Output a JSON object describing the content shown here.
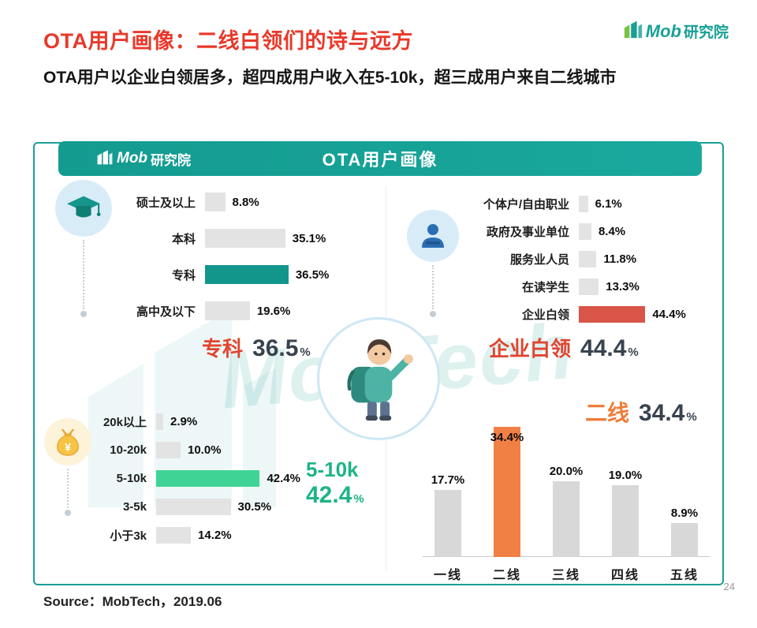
{
  "page": {
    "title": "OTA用户画像：二线白领们的诗与远方",
    "subtitle": "OTA用户以企业白领居多，超四成用户收入在5-10k，超三成用户来自二线城市",
    "source": "Source：MobTech，2019.06",
    "page_number": "24",
    "watermark": "MobTech"
  },
  "brand": {
    "mob": "Mob",
    "suffix": "研究院"
  },
  "panel": {
    "header_title": "OTA用户画像"
  },
  "colors": {
    "accent_teal": "#18a096",
    "title_red": "#e8392b",
    "bar_gray": "#e3e3e3",
    "city_bar_gray": "#d8d8d8",
    "bar_teal": "#12968c",
    "bar_red": "#d85548",
    "bar_green": "#3fd495",
    "bar_orange": "#f08044"
  },
  "chart_data": [
    {
      "id": "education",
      "type": "bar",
      "orientation": "horizontal",
      "categories": [
        "硕士及以上",
        "本科",
        "专科",
        "高中及以下"
      ],
      "values": [
        8.8,
        35.1,
        36.5,
        19.6
      ],
      "labels": [
        "8.8%",
        "35.1%",
        "36.5%",
        "19.6%"
      ],
      "highlight_index": 2,
      "highlight_color": "#12968c",
      "callout": {
        "label": "专科",
        "value": "36.5",
        "unit": "%"
      }
    },
    {
      "id": "occupation",
      "type": "bar",
      "orientation": "horizontal",
      "categories": [
        "个体户/自由职业",
        "政府及事业单位",
        "服务业人员",
        "在读学生",
        "企业白领"
      ],
      "values": [
        6.1,
        8.4,
        11.8,
        13.3,
        44.4
      ],
      "labels": [
        "6.1%",
        "8.4%",
        "11.8%",
        "13.3%",
        "44.4%"
      ],
      "highlight_index": 4,
      "highlight_color": "#d85548",
      "callout": {
        "label": "企业白领",
        "value": "44.4",
        "unit": "%"
      }
    },
    {
      "id": "income",
      "type": "bar",
      "orientation": "horizontal",
      "categories": [
        "20k以上",
        "10-20k",
        "5-10k",
        "3-5k",
        "小于3k"
      ],
      "values": [
        2.9,
        10.0,
        42.4,
        30.5,
        14.2
      ],
      "labels": [
        "2.9%",
        "10.0%",
        "42.4%",
        "30.5%",
        "14.2%"
      ],
      "highlight_index": 2,
      "highlight_color": "#3fd495",
      "callout": {
        "label": "5-10k",
        "value": "42.4",
        "unit": "%"
      }
    },
    {
      "id": "city_tier",
      "type": "bar",
      "orientation": "vertical",
      "categories": [
        "一线",
        "二线",
        "三线",
        "四线",
        "五线"
      ],
      "values": [
        17.7,
        34.4,
        20.0,
        19.0,
        8.9
      ],
      "labels": [
        "17.7%",
        "34.4%",
        "20.0%",
        "19.0%",
        "8.9%"
      ],
      "highlight_index": 1,
      "highlight_color": "#f08044",
      "callout": {
        "label": "二线",
        "value": "34.4",
        "unit": "%"
      }
    }
  ]
}
